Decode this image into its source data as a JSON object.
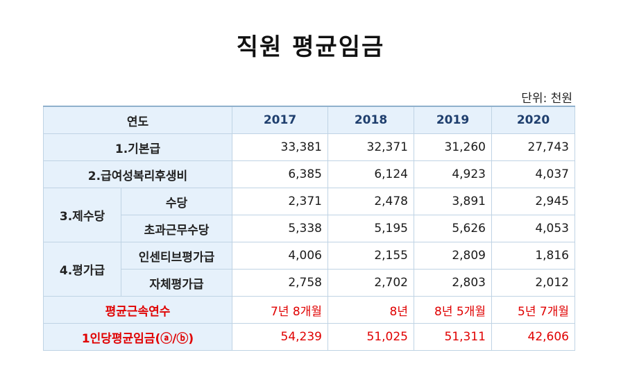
{
  "title": "직원 평균임금",
  "unit": "단위: 천원",
  "header": {
    "label": "연도",
    "years": [
      "2017",
      "2018",
      "2019",
      "2020"
    ]
  },
  "rows": {
    "basic": {
      "label": "1.기본급",
      "values": [
        "33,381",
        "32,371",
        "31,260",
        "27,743"
      ]
    },
    "benefits": {
      "label": "2.급여성복리후생비",
      "values": [
        "6,385",
        "6,124",
        "4,923",
        "4,037"
      ]
    },
    "allowances": {
      "label": "3.제수당",
      "allowance": {
        "label": "수당",
        "values": [
          "2,371",
          "2,478",
          "3,891",
          "2,945"
        ]
      },
      "overtime": {
        "label": "초과근무수당",
        "values": [
          "5,338",
          "5,195",
          "5,626",
          "4,053"
        ]
      }
    },
    "evaluation": {
      "label": "4.평가급",
      "incentive": {
        "label": "인센티브평가급",
        "values": [
          "4,006",
          "2,155",
          "2,809",
          "1,816"
        ]
      },
      "self": {
        "label": "자체평가급",
        "values": [
          "2,758",
          "2,702",
          "2,803",
          "2,012"
        ]
      }
    },
    "tenure": {
      "label": "평균근속연수",
      "values": [
        "7년 8개월",
        "8년",
        "8년 5개월",
        "5년 7개월"
      ]
    },
    "average": {
      "label": "1인당평균임금(ⓐ/ⓑ)",
      "values": [
        "54,239",
        "51,025",
        "51,311",
        "42,606"
      ]
    }
  }
}
